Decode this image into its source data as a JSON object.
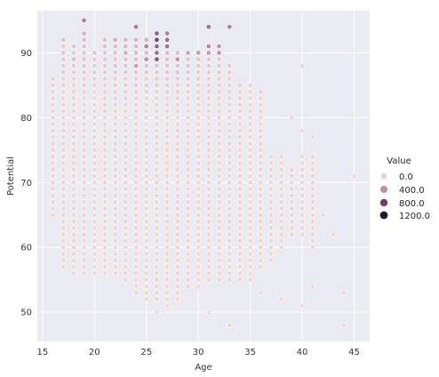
{
  "chart_data": {
    "type": "scatter",
    "title": "",
    "xlabel": "Age",
    "ylabel": "Potential",
    "xlim": [
      14.5,
      46.5
    ],
    "ylim": [
      45.5,
      96.5
    ],
    "xticks": [
      15,
      20,
      25,
      30,
      35,
      40,
      45
    ],
    "yticks": [
      50,
      60,
      70,
      80,
      90
    ],
    "grid": true,
    "legend": {
      "title": "Value",
      "placement": "right",
      "entries": [
        {
          "label": "0.0",
          "color": "#efd1c9"
        },
        {
          "label": "400.0",
          "color": "#c48aa5"
        },
        {
          "label": "800.0",
          "color": "#6f3e6c"
        },
        {
          "label": "1200.0",
          "color": "#1f1a33"
        }
      ]
    },
    "color_scale": {
      "min": 0,
      "max": 1200,
      "colors": [
        "#f3d6cd",
        "#c48aa5",
        "#6f3e6c",
        "#1f1a33"
      ]
    },
    "ranges": [
      {
        "age": 16,
        "min": 65,
        "max": 86
      },
      {
        "age": 17,
        "min": 57,
        "max": 92
      },
      {
        "age": 18,
        "min": 56,
        "max": 91
      },
      {
        "age": 19,
        "min": 56,
        "max": 93
      },
      {
        "age": 20,
        "min": 56,
        "max": 90
      },
      {
        "age": 21,
        "min": 56,
        "max": 92
      },
      {
        "age": 22,
        "min": 56,
        "max": 92
      },
      {
        "age": 23,
        "min": 55,
        "max": 92
      },
      {
        "age": 24,
        "min": 53,
        "max": 92
      },
      {
        "age": 25,
        "min": 52,
        "max": 92
      },
      {
        "age": 26,
        "min": 52,
        "max": 92
      },
      {
        "age": 27,
        "min": 52,
        "max": 92
      },
      {
        "age": 28,
        "min": 53,
        "max": 90
      },
      {
        "age": 29,
        "min": 54,
        "max": 90
      },
      {
        "age": 30,
        "min": 54,
        "max": 90
      },
      {
        "age": 31,
        "min": 55,
        "max": 91
      },
      {
        "age": 32,
        "min": 55,
        "max": 90
      },
      {
        "age": 33,
        "min": 55,
        "max": 88
      },
      {
        "age": 34,
        "min": 55,
        "max": 85
      },
      {
        "age": 35,
        "min": 55,
        "max": 85
      },
      {
        "age": 36,
        "min": 57,
        "max": 84
      },
      {
        "age": 37,
        "min": 58,
        "max": 74
      },
      {
        "age": 38,
        "min": 60,
        "max": 74
      },
      {
        "age": 39,
        "min": 62,
        "max": 72
      },
      {
        "age": 40,
        "min": 62,
        "max": 74
      },
      {
        "age": 41,
        "min": 60,
        "max": 74
      }
    ],
    "high_value_points": [
      {
        "x": 19,
        "y": 95,
        "value": 500
      },
      {
        "x": 24,
        "y": 94,
        "value": 550
      },
      {
        "x": 26,
        "y": 93,
        "value": 700
      },
      {
        "x": 26,
        "y": 92,
        "value": 850
      },
      {
        "x": 27,
        "y": 93,
        "value": 520
      },
      {
        "x": 27,
        "y": 92,
        "value": 600
      },
      {
        "x": 25,
        "y": 91,
        "value": 480
      },
      {
        "x": 26,
        "y": 91,
        "value": 650
      },
      {
        "x": 27,
        "y": 91,
        "value": 560
      },
      {
        "x": 26,
        "y": 90,
        "value": 600
      },
      {
        "x": 26,
        "y": 89,
        "value": 750
      },
      {
        "x": 25,
        "y": 89,
        "value": 420
      },
      {
        "x": 28,
        "y": 89,
        "value": 400
      },
      {
        "x": 24,
        "y": 88,
        "value": 330
      },
      {
        "x": 31,
        "y": 94,
        "value": 600
      },
      {
        "x": 33,
        "y": 94,
        "value": 520
      },
      {
        "x": 31,
        "y": 91,
        "value": 450
      },
      {
        "x": 32,
        "y": 91,
        "value": 420
      },
      {
        "x": 32,
        "y": 90,
        "value": 380
      },
      {
        "x": 31,
        "y": 90,
        "value": 360
      },
      {
        "x": 30,
        "y": 90,
        "value": 340
      },
      {
        "x": 29,
        "y": 90,
        "value": 300
      },
      {
        "x": 23,
        "y": 90,
        "value": 250
      },
      {
        "x": 22,
        "y": 92,
        "value": 230
      }
    ],
    "outlier_points": [
      {
        "x": 17,
        "y": 92,
        "value": 120
      },
      {
        "x": 18,
        "y": 89,
        "value": 150
      },
      {
        "x": 19,
        "y": 95,
        "value": 500
      },
      {
        "x": 19,
        "y": 93,
        "value": 200
      },
      {
        "x": 40,
        "y": 88,
        "value": 20
      },
      {
        "x": 39,
        "y": 80,
        "value": 15
      },
      {
        "x": 40,
        "y": 78,
        "value": 10
      },
      {
        "x": 41,
        "y": 77,
        "value": 10
      },
      {
        "x": 44,
        "y": 53,
        "value": 5
      },
      {
        "x": 44,
        "y": 48,
        "value": 5
      },
      {
        "x": 45,
        "y": 71,
        "value": 5
      },
      {
        "x": 42,
        "y": 65,
        "value": 5
      },
      {
        "x": 43,
        "y": 62,
        "value": 5
      },
      {
        "x": 41,
        "y": 54,
        "value": 5
      },
      {
        "x": 40,
        "y": 51,
        "value": 5
      },
      {
        "x": 38,
        "y": 52,
        "value": 5
      },
      {
        "x": 36,
        "y": 53,
        "value": 5
      },
      {
        "x": 33,
        "y": 48,
        "value": 5
      },
      {
        "x": 31,
        "y": 50,
        "value": 5
      },
      {
        "x": 26,
        "y": 50,
        "value": 5
      },
      {
        "x": 27,
        "y": 51,
        "value": 5
      },
      {
        "x": 25,
        "y": 52,
        "value": 5
      },
      {
        "x": 28,
        "y": 52,
        "value": 5
      }
    ]
  }
}
